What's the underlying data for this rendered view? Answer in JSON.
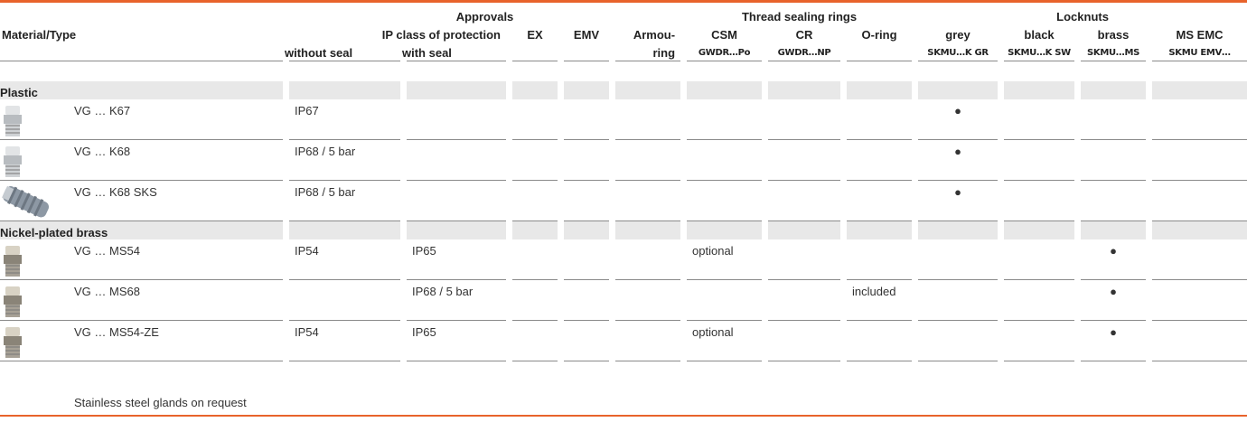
{
  "header": {
    "groups": [
      "Approvals",
      "Thread sealing rings",
      "Locknuts"
    ],
    "row2": [
      "Material/Type",
      "IP class of protection",
      "EX",
      "EMV",
      "Armou-",
      "CSM",
      "CR",
      "O-ring",
      "grey",
      "black",
      "brass",
      "MS EMC"
    ],
    "row3": [
      "without seal",
      "with seal",
      "ring",
      "GWDR…Po",
      "GWDR…NP",
      "SKMU…K GR",
      "SKMU…K SW",
      "SKMU…MS",
      "SKMU EMV…"
    ]
  },
  "sections": [
    {
      "title": "Plastic",
      "rows": [
        [
          "VG … K67",
          "IP67",
          null,
          null,
          null,
          null,
          null,
          null,
          null,
          "●",
          null,
          null,
          null
        ],
        [
          "VG … K68",
          "IP68 / 5 bar",
          null,
          null,
          null,
          null,
          null,
          null,
          null,
          "●",
          null,
          null,
          null
        ],
        [
          "VG … K68 SKS",
          "IP68 / 5 bar",
          null,
          null,
          null,
          null,
          null,
          null,
          null,
          "●",
          null,
          null,
          null
        ]
      ]
    },
    {
      "title": "Nickel-plated brass",
      "rows": [
        [
          "VG … MS54",
          "IP54",
          "IP65",
          null,
          null,
          null,
          "optional",
          null,
          null,
          null,
          null,
          "●",
          null
        ],
        [
          "VG … MS68",
          null,
          "IP68 / 5 bar",
          null,
          null,
          null,
          null,
          null,
          "included",
          null,
          null,
          "●",
          null
        ],
        [
          "VG … MS54-ZE",
          "IP54",
          "IP65",
          null,
          null,
          null,
          "optional",
          null,
          null,
          null,
          null,
          "●",
          null
        ]
      ]
    }
  ],
  "footnote": "Stainless steel glands on request"
}
